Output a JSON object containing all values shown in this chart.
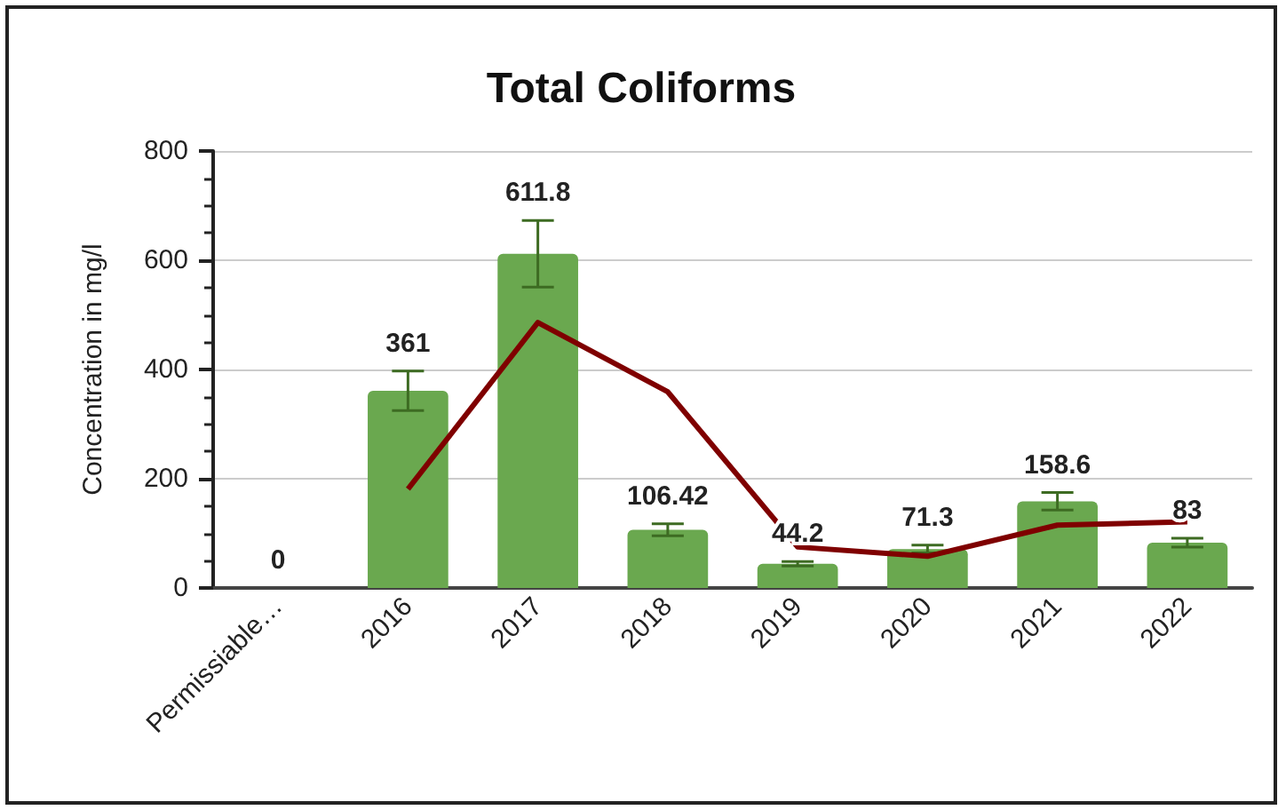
{
  "chart_data": {
    "type": "bar",
    "title": "Total Coliforms",
    "ylabel": "Concentration in mg/l",
    "categories": [
      "Permissiable…",
      "2016",
      "2017",
      "2018",
      "2019",
      "2020",
      "2021",
      "2022"
    ],
    "series": [
      {
        "colors": [
          "#e06666",
          "#6aa84f",
          "#6aa84f",
          "#6aa84f",
          "#6aa84f",
          "#6aa84f",
          "#6aa84f",
          "#6aa84f"
        ],
        "values": [
          0,
          361,
          611.8,
          106.42,
          44.2,
          71.3,
          158.6,
          83
        ],
        "errors": [
          null,
          36,
          61,
          11,
          4,
          7,
          16,
          8
        ],
        "data_labels": true
      },
      {
        "type": "line",
        "color": "#7f0000",
        "values": [
          null,
          181,
          486,
          359,
          75,
          58,
          115,
          121
        ],
        "marker": "none"
      }
    ],
    "ylim": [
      0,
      800
    ],
    "yticks": [
      0,
      200,
      400,
      600,
      800
    ],
    "grid": "y"
  }
}
